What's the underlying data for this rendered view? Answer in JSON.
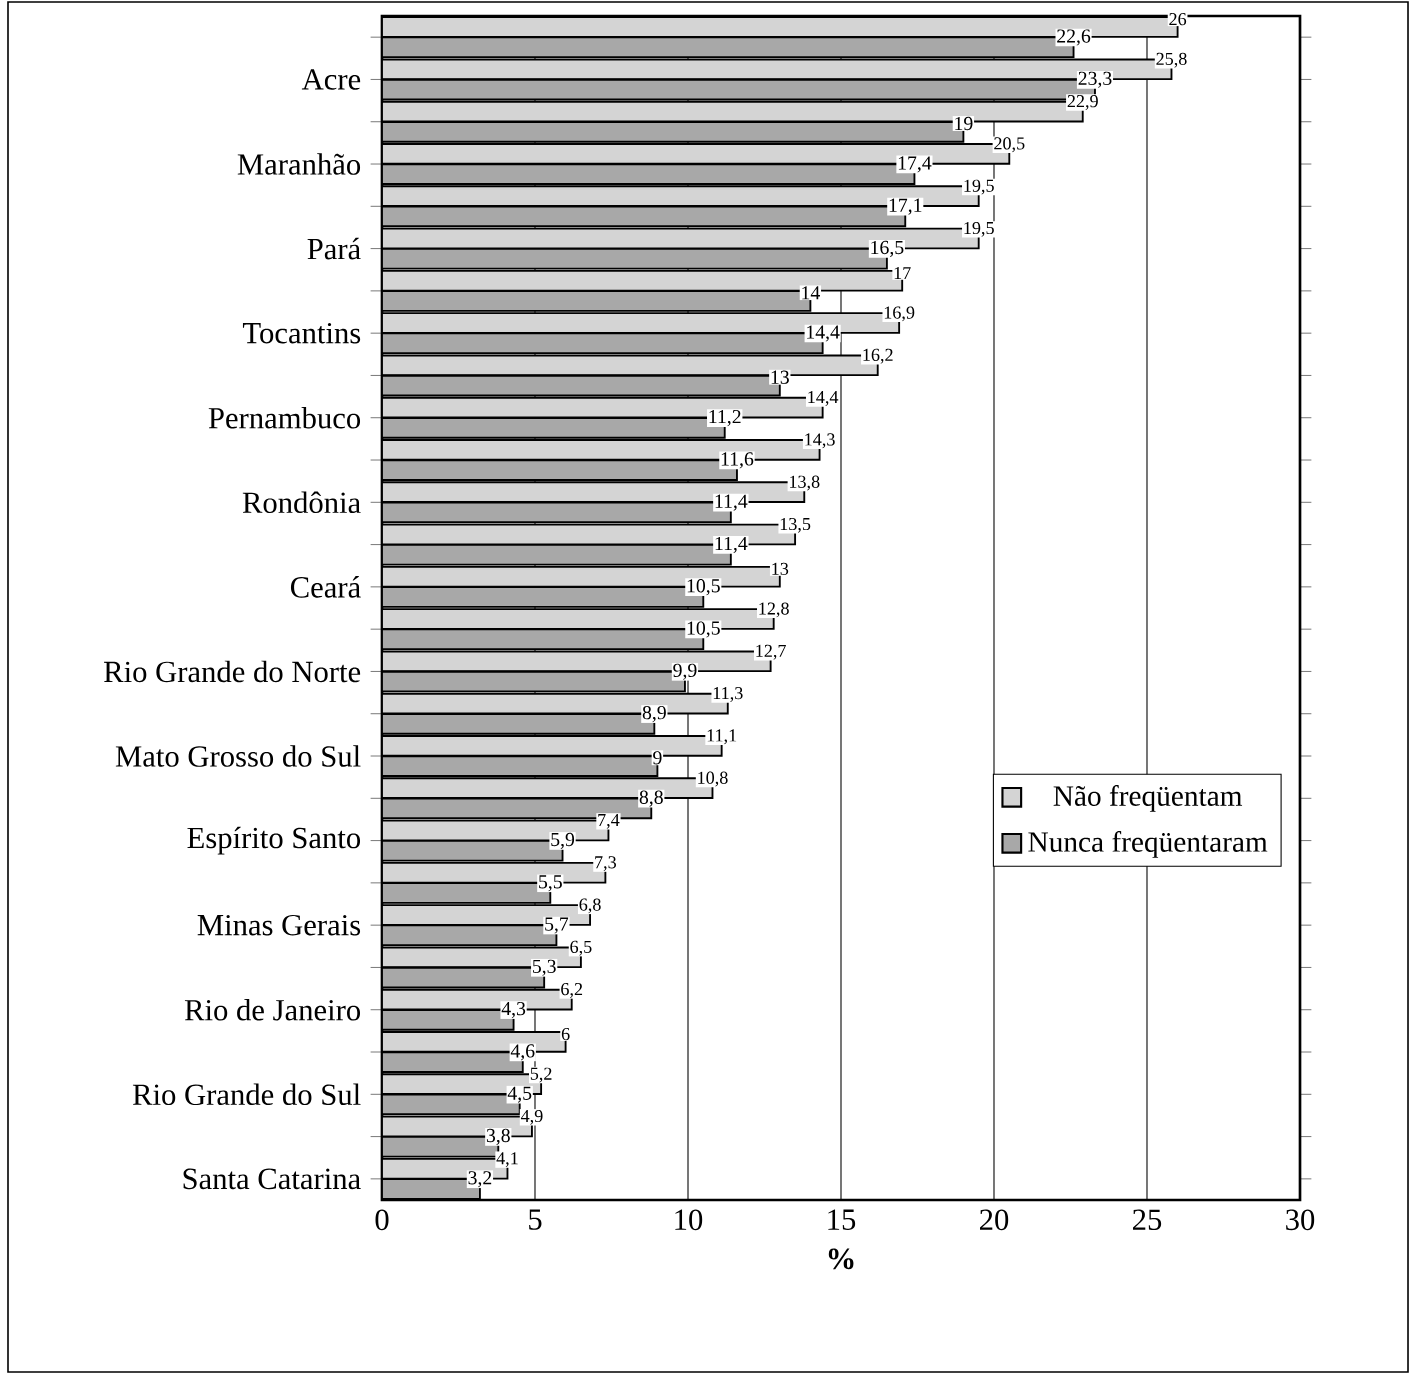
{
  "chart_data": {
    "type": "bar",
    "orientation": "horizontal",
    "xlabel": "%",
    "categories": [
      null,
      "Acre",
      null,
      "Maranhão",
      null,
      "Pará",
      null,
      "Tocantins",
      null,
      "Pernambuco",
      null,
      "Rondônia",
      null,
      "Ceará",
      null,
      "Rio Grande do Norte",
      null,
      "Mato Grosso do Sul",
      null,
      "Espírito Santo",
      null,
      "Minas Gerais",
      null,
      "Rio de Janeiro",
      null,
      "Rio Grande do Sul",
      null,
      "Santa Catarina"
    ],
    "series": [
      {
        "name": "Não freqüentam",
        "color": "#d4d4d4",
        "values": [
          26,
          25.8,
          22.9,
          20.5,
          19.5,
          19.5,
          17,
          16.9,
          16.2,
          14.4,
          14.3,
          13.8,
          13.5,
          13,
          12.8,
          12.7,
          11.3,
          11.1,
          10.8,
          7.4,
          7.3,
          6.8,
          6.5,
          6.2,
          6,
          5.2,
          4.9,
          4.1
        ],
        "value_labels": [
          "26",
          "25,8",
          "22,9",
          "20,5",
          "19,5",
          "19,5",
          "17",
          "16,9",
          "16,2",
          "14,4",
          "14,3",
          "13,8",
          "13,5",
          "13",
          "12,8",
          "12,7",
          "11,3",
          "11,1",
          "10,8",
          "7,4",
          "7,3",
          "6,8",
          "6,5",
          "6,2",
          "6",
          "5,2",
          "4,9",
          "4,1"
        ]
      },
      {
        "name": "Nunca freqüentaram",
        "color": "#a8a8a8",
        "values": [
          22.6,
          23.3,
          19,
          17.4,
          17.1,
          16.5,
          14,
          14.4,
          13,
          11.2,
          11.6,
          11.4,
          11.4,
          10.5,
          10.5,
          9.9,
          8.9,
          9,
          8.8,
          5.9,
          5.5,
          5.7,
          5.3,
          4.3,
          4.6,
          4.5,
          3.8,
          3.2
        ],
        "value_labels": [
          "22,6",
          "23,3",
          "19",
          "17,4",
          "17,1",
          "16,5",
          "14",
          "14,4",
          "13",
          "11,2",
          "11,6",
          "11,4",
          "11,4",
          "10,5",
          "10,5",
          "9,9",
          "8,9",
          "9",
          "8,8",
          "5,9",
          "5,5",
          "5,7",
          "5,3",
          "4,3",
          "4,6",
          "4,5",
          "3,8",
          "3,2"
        ]
      }
    ],
    "xlim": [
      0,
      30
    ],
    "xticks": [
      0,
      5,
      10,
      15,
      20,
      25,
      30
    ],
    "grid": "x",
    "legend": "right"
  }
}
